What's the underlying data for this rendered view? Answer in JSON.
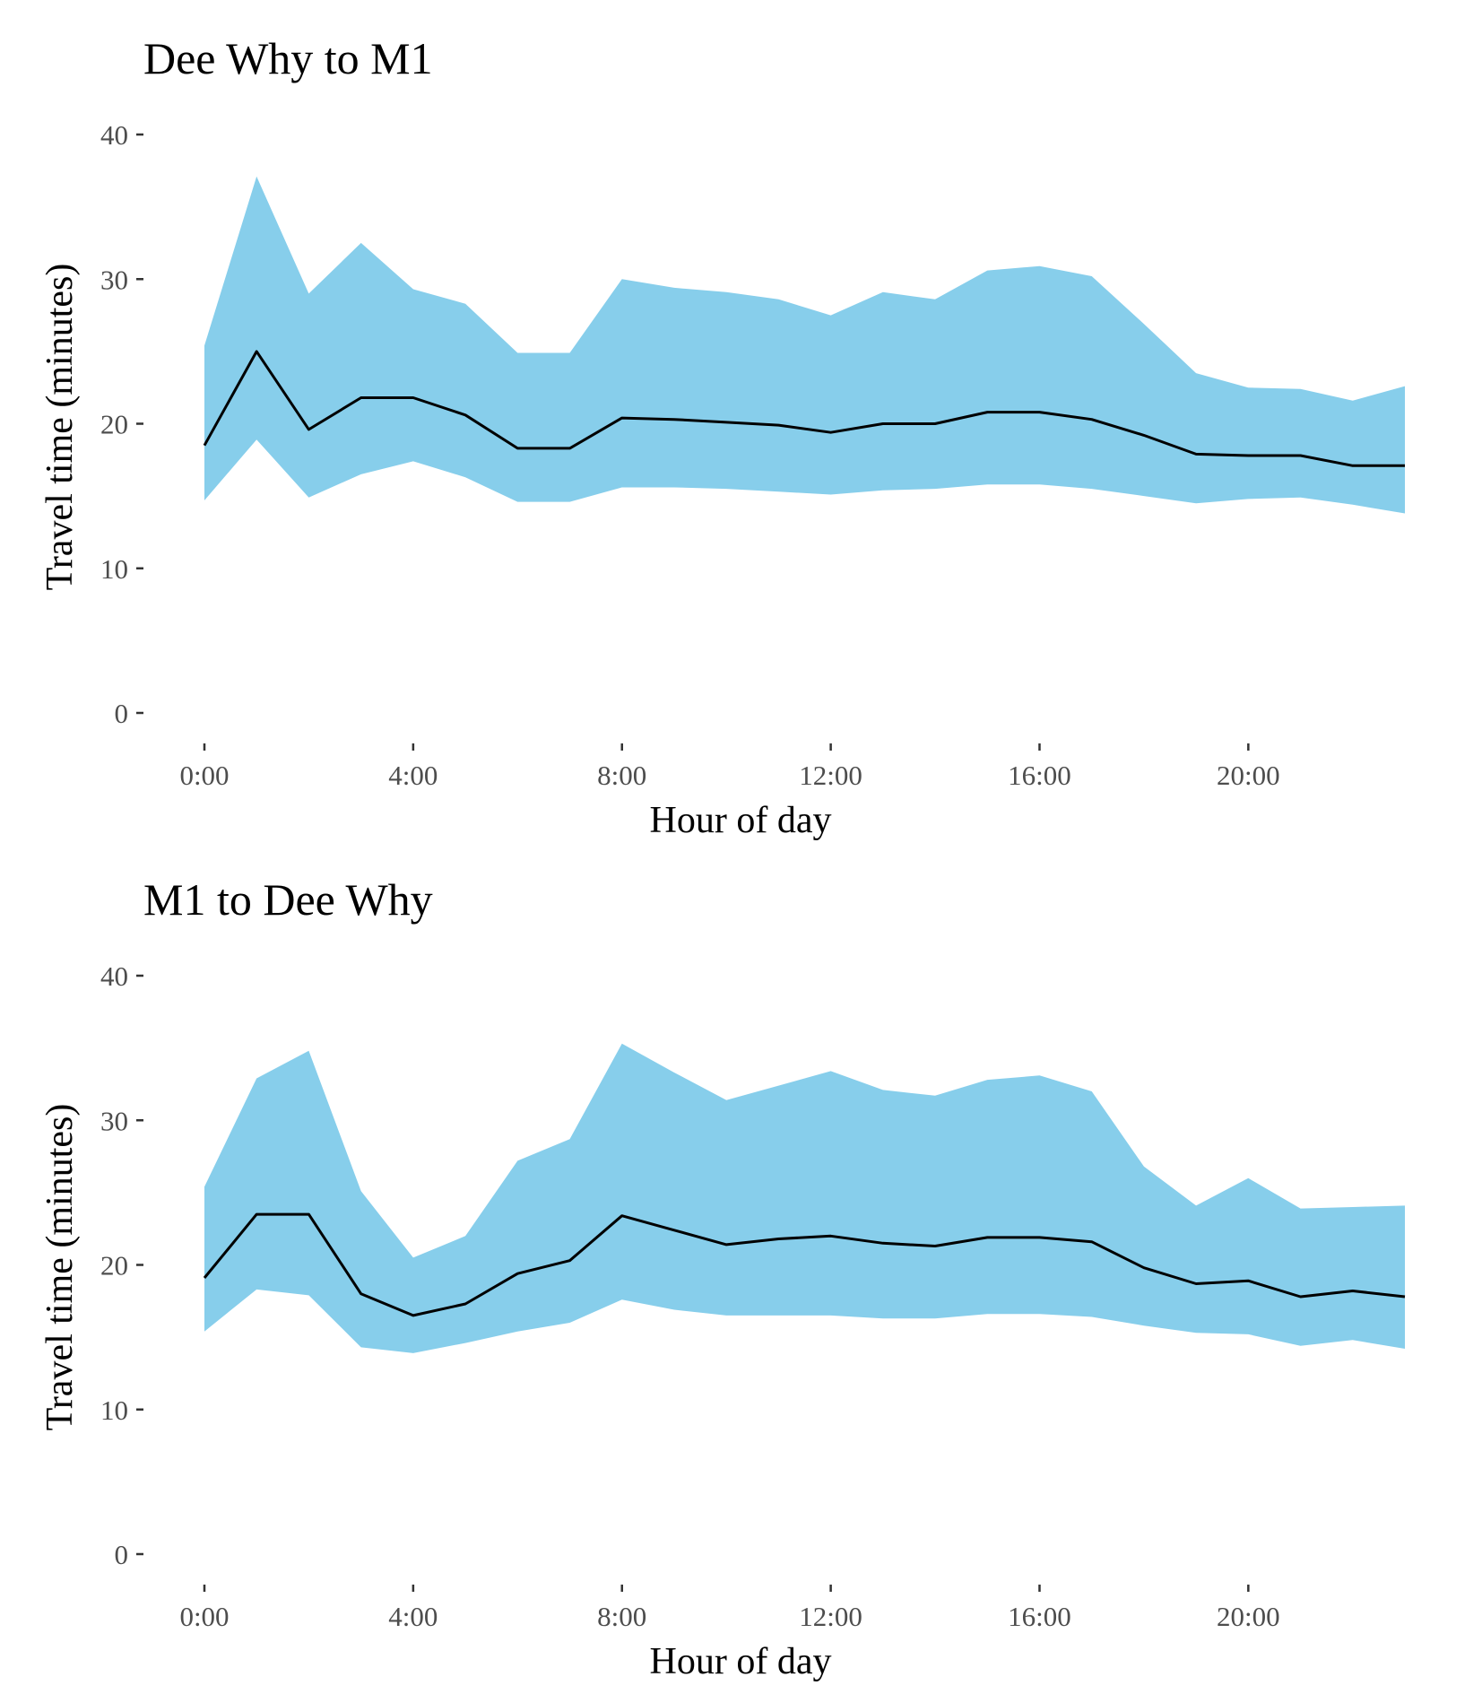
{
  "colors": {
    "band": "#87CEEB",
    "line": "#000000",
    "tick": "#333333",
    "tick_label": "#4d4d4d"
  },
  "chart_data": [
    {
      "type": "area",
      "title": "Dee Why to M1",
      "xlabel": "Hour of day",
      "ylabel": "Travel time (minutes)",
      "ylim": [
        0,
        40
      ],
      "xlim": [
        0,
        23
      ],
      "x_ticks": [
        0,
        4,
        8,
        12,
        16,
        20
      ],
      "x_tick_labels": [
        "0:00",
        "4:00",
        "8:00",
        "12:00",
        "16:00",
        "20:00"
      ],
      "y_ticks": [
        0,
        10,
        20,
        30,
        40
      ],
      "y_tick_labels": [
        "0",
        "10",
        "20",
        "30",
        "40"
      ],
      "grid": false,
      "x": [
        0,
        1,
        2,
        3,
        4,
        5,
        6,
        7,
        8,
        9,
        10,
        11,
        12,
        13,
        14,
        15,
        16,
        17,
        18,
        19,
        20,
        21,
        22,
        23
      ],
      "median": [
        18.5,
        25.0,
        19.6,
        21.8,
        21.8,
        20.6,
        18.3,
        18.3,
        20.4,
        20.3,
        20.1,
        19.9,
        19.4,
        20.0,
        20.0,
        20.8,
        20.8,
        20.3,
        19.2,
        17.9,
        17.8,
        17.8,
        17.1,
        17.1
      ],
      "lower": [
        14.7,
        18.9,
        14.9,
        16.5,
        17.4,
        16.3,
        14.6,
        14.6,
        15.6,
        15.6,
        15.5,
        15.3,
        15.1,
        15.4,
        15.5,
        15.8,
        15.8,
        15.5,
        15.0,
        14.5,
        14.8,
        14.9,
        14.4,
        13.8
      ],
      "upper": [
        25.4,
        37.1,
        29.0,
        32.5,
        29.3,
        28.3,
        24.9,
        24.9,
        30.0,
        29.4,
        29.1,
        28.6,
        27.5,
        29.1,
        28.6,
        30.6,
        30.9,
        30.2,
        26.9,
        23.5,
        22.5,
        22.4,
        21.6,
        22.6
      ]
    },
    {
      "type": "area",
      "title": "M1 to Dee Why",
      "xlabel": "Hour of day",
      "ylabel": "Travel time (minutes)",
      "ylim": [
        0,
        40
      ],
      "xlim": [
        0,
        23
      ],
      "x_ticks": [
        0,
        4,
        8,
        12,
        16,
        20
      ],
      "x_tick_labels": [
        "0:00",
        "4:00",
        "8:00",
        "12:00",
        "16:00",
        "20:00"
      ],
      "y_ticks": [
        0,
        10,
        20,
        30,
        40
      ],
      "y_tick_labels": [
        "0",
        "10",
        "20",
        "30",
        "40"
      ],
      "grid": false,
      "x": [
        0,
        1,
        2,
        3,
        4,
        5,
        6,
        7,
        8,
        9,
        10,
        11,
        12,
        13,
        14,
        15,
        16,
        17,
        18,
        19,
        20,
        21,
        22,
        23
      ],
      "median": [
        19.1,
        23.5,
        23.5,
        18.0,
        16.5,
        17.3,
        19.4,
        20.3,
        23.4,
        22.4,
        21.4,
        21.8,
        22.0,
        21.5,
        21.3,
        21.9,
        21.9,
        21.6,
        19.8,
        18.7,
        18.9,
        17.8,
        18.2,
        17.8
      ],
      "lower": [
        15.4,
        18.3,
        17.9,
        14.3,
        13.9,
        14.6,
        15.4,
        16.0,
        17.6,
        16.9,
        16.5,
        16.5,
        16.5,
        16.3,
        16.3,
        16.6,
        16.6,
        16.4,
        15.8,
        15.3,
        15.2,
        14.4,
        14.8,
        14.2
      ],
      "upper": [
        25.4,
        32.9,
        34.8,
        25.1,
        20.5,
        22.0,
        27.2,
        28.7,
        35.3,
        33.3,
        31.4,
        32.4,
        33.4,
        32.1,
        31.7,
        32.8,
        33.1,
        32.0,
        26.8,
        24.1,
        26.0,
        23.9,
        24.0,
        24.1
      ]
    }
  ]
}
